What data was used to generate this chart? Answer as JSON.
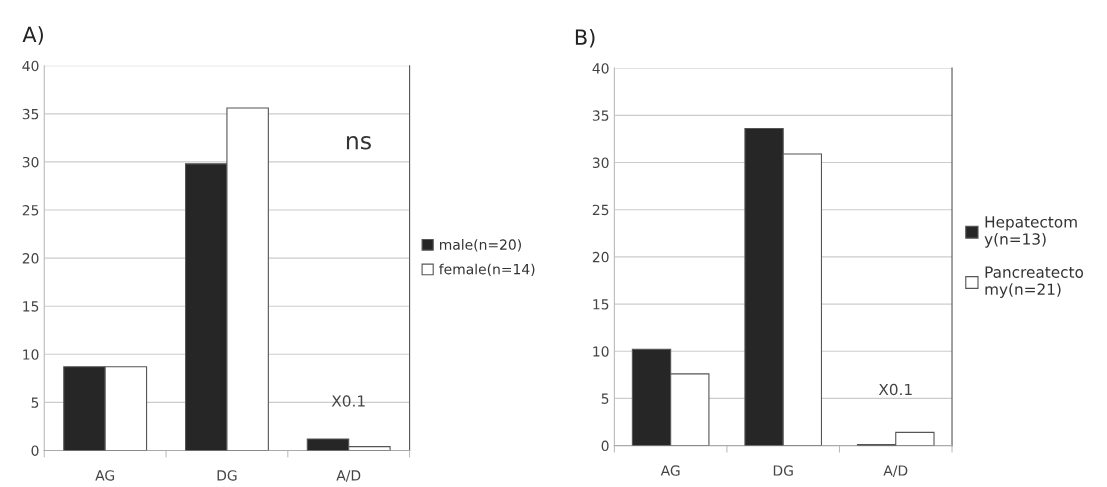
{
  "chart_data": [
    {
      "type": "bar",
      "title": "A)",
      "categories": [
        "AG",
        "DG",
        "A/D"
      ],
      "series": [
        {
          "name": "male(n=20)",
          "color": "#262626",
          "values": [
            8.7,
            29.8,
            1.2
          ]
        },
        {
          "name": "female(n=14)",
          "color": "#ffffff",
          "values": [
            8.7,
            35.6,
            0.4
          ]
        }
      ],
      "ylim": [
        0,
        40
      ],
      "yticks": [
        0,
        5,
        10,
        15,
        20,
        25,
        30,
        35,
        40
      ],
      "grid": "y",
      "legend": "right",
      "annotations": [
        "ns",
        "X0.1"
      ]
    },
    {
      "type": "bar",
      "title": "B)",
      "categories": [
        "AG",
        "DG",
        "A/D"
      ],
      "series": [
        {
          "name": "Hepatectom\ny(n=13)",
          "color": "#262626",
          "values": [
            10.2,
            33.6,
            0.1
          ]
        },
        {
          "name": "Pancreatecto\nmy(n=21)",
          "color": "#ffffff",
          "values": [
            7.6,
            30.9,
            1.4
          ]
        }
      ],
      "ylim": [
        0,
        40
      ],
      "yticks": [
        0,
        5,
        10,
        15,
        20,
        25,
        30,
        35,
        40
      ],
      "grid": "y",
      "legend": "right",
      "annotations": [
        "X0.1"
      ]
    }
  ]
}
